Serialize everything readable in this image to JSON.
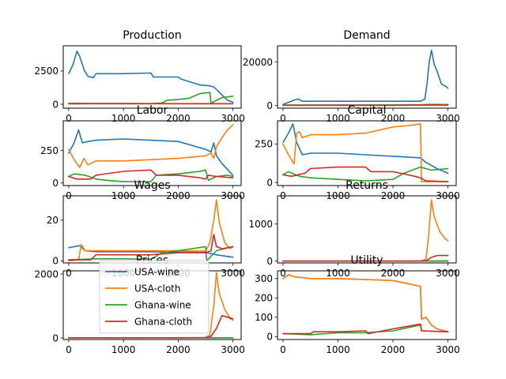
{
  "chart_data": [
    {
      "type": "line",
      "title": "Production",
      "xlim": [
        -100,
        3150
      ],
      "ylim": [
        -300,
        4400
      ],
      "xticks": [
        0,
        1000,
        2000,
        3000
      ],
      "yticks": [
        0,
        2500
      ],
      "series": [
        {
          "name": "USA-wine",
          "color": "#1f77b4",
          "x": [
            0,
            80,
            150,
            200,
            280,
            350,
            450,
            500,
            1000,
            1500,
            1550,
            2000,
            2050,
            2200,
            2400,
            2550,
            2650,
            2800,
            2900,
            3000
          ],
          "y": [
            2300,
            3000,
            4000,
            3600,
            2600,
            2100,
            2000,
            2300,
            2300,
            2350,
            2050,
            2050,
            1900,
            1700,
            1450,
            1400,
            1300,
            700,
            300,
            150
          ]
        },
        {
          "name": "USA-cloth",
          "color": "#ff7f0e",
          "x": [
            0,
            500,
            1000,
            2000,
            2500,
            3000
          ],
          "y": [
            40,
            40,
            30,
            30,
            30,
            30
          ]
        },
        {
          "name": "Ghana-wine",
          "color": "#2ca02c",
          "x": [
            0,
            200,
            500,
            1000,
            1500,
            1700,
            1800,
            2000,
            2200,
            2400,
            2500,
            2580,
            2600,
            2700,
            2800,
            3000
          ],
          "y": [
            20,
            30,
            40,
            40,
            40,
            80,
            300,
            350,
            450,
            800,
            850,
            880,
            50,
            300,
            500,
            600
          ]
        },
        {
          "name": "Ghana-cloth",
          "color": "#d62728",
          "x": [
            0,
            500,
            1000,
            2000,
            2500,
            3000
          ],
          "y": [
            60,
            50,
            50,
            40,
            40,
            40
          ]
        }
      ]
    },
    {
      "type": "line",
      "title": "Demand",
      "xlim": [
        -100,
        3150
      ],
      "ylim": [
        -1200,
        27500
      ],
      "xticks": [
        0,
        1000,
        2000,
        3000
      ],
      "yticks": [
        0,
        20000
      ],
      "series": [
        {
          "name": "USA-wine",
          "color": "#1f77b4",
          "x": [
            0,
            100,
            200,
            280,
            350,
            500,
            1000,
            1500,
            2000,
            2500,
            2580,
            2620,
            2660,
            2700,
            2750,
            2800,
            2880,
            2950,
            3000
          ],
          "y": [
            500,
            1500,
            2500,
            3000,
            2000,
            2000,
            2000,
            2000,
            2000,
            2000,
            3000,
            10000,
            20000,
            25500,
            19000,
            16000,
            10000,
            9000,
            8000
          ]
        },
        {
          "name": "USA-cloth",
          "color": "#ff7f0e",
          "x": [
            0,
            1000,
            2000,
            2500,
            2700,
            3000
          ],
          "y": [
            200,
            200,
            300,
            400,
            600,
            500
          ]
        },
        {
          "name": "Ghana-wine",
          "color": "#2ca02c",
          "x": [
            0,
            1000,
            2000,
            2500,
            2700,
            3000
          ],
          "y": [
            200,
            200,
            300,
            300,
            400,
            400
          ]
        },
        {
          "name": "Ghana-cloth",
          "color": "#d62728",
          "x": [
            0,
            1000,
            2000,
            2500,
            3000
          ],
          "y": [
            100,
            100,
            100,
            200,
            200
          ]
        }
      ]
    },
    {
      "type": "line",
      "title": "Labor",
      "xlim": [
        -100,
        3150
      ],
      "ylim": [
        -20,
        480
      ],
      "xticks": [
        0,
        1000,
        2000,
        3000
      ],
      "yticks": [
        0,
        250
      ],
      "series": [
        {
          "name": "USA-wine",
          "color": "#1f77b4",
          "x": [
            0,
            100,
            180,
            250,
            350,
            500,
            1000,
            1500,
            2000,
            2500,
            2600,
            2650,
            2700,
            2800,
            3000
          ],
          "y": [
            230,
            310,
            410,
            310,
            320,
            330,
            340,
            330,
            320,
            260,
            240,
            310,
            210,
            150,
            60
          ]
        },
        {
          "name": "USA-cloth",
          "color": "#ff7f0e",
          "x": [
            0,
            100,
            200,
            280,
            350,
            500,
            1000,
            1500,
            2000,
            2500,
            2600,
            2650,
            2700,
            2800,
            2900,
            3000
          ],
          "y": [
            260,
            180,
            120,
            190,
            140,
            170,
            170,
            180,
            190,
            210,
            230,
            190,
            280,
            350,
            410,
            450
          ]
        },
        {
          "name": "Ghana-wine",
          "color": "#2ca02c",
          "x": [
            0,
            100,
            300,
            500,
            700,
            1000,
            1500,
            1600,
            2000,
            2200,
            2400,
            2500,
            2550,
            2700,
            2900,
            3000
          ],
          "y": [
            50,
            70,
            60,
            30,
            20,
            10,
            10,
            60,
            70,
            80,
            90,
            100,
            20,
            50,
            60,
            50
          ]
        },
        {
          "name": "Ghana-cloth",
          "color": "#d62728",
          "x": [
            0,
            150,
            400,
            500,
            1000,
            1500,
            1600,
            2000,
            2400,
            2500,
            2550,
            2700,
            3000
          ],
          "y": [
            50,
            30,
            30,
            60,
            90,
            100,
            60,
            60,
            40,
            30,
            60,
            50,
            40
          ]
        }
      ]
    },
    {
      "type": "line",
      "title": "Capital",
      "xlim": [
        -100,
        3150
      ],
      "ylim": [
        -20,
        400
      ],
      "xticks": [
        0,
        1000,
        2000,
        3000
      ],
      "yticks": [
        0,
        250
      ],
      "series": [
        {
          "name": "USA-wine",
          "color": "#1f77b4",
          "x": [
            0,
            100,
            180,
            250,
            350,
            500,
            1000,
            1500,
            2000,
            2500,
            2600,
            2800,
            3000
          ],
          "y": [
            260,
            320,
            380,
            260,
            180,
            190,
            190,
            180,
            170,
            160,
            130,
            90,
            60
          ]
        },
        {
          "name": "USA-cloth",
          "color": "#ff7f0e",
          "x": [
            0,
            100,
            200,
            250,
            300,
            350,
            500,
            1000,
            1500,
            2000,
            2300,
            2500,
            2520,
            3000
          ],
          "y": [
            250,
            180,
            120,
            320,
            330,
            290,
            310,
            310,
            320,
            360,
            370,
            380,
            5,
            5
          ]
        },
        {
          "name": "Ghana-wine",
          "color": "#2ca02c",
          "x": [
            0,
            100,
            300,
            500,
            1000,
            1500,
            2000,
            2200,
            2500,
            2700,
            3000
          ],
          "y": [
            50,
            70,
            40,
            30,
            20,
            10,
            20,
            60,
            100,
            80,
            90
          ]
        },
        {
          "name": "Ghana-cloth",
          "color": "#d62728",
          "x": [
            0,
            150,
            400,
            500,
            1000,
            1500,
            1600,
            2000,
            2400,
            2500,
            2600,
            3000
          ],
          "y": [
            50,
            40,
            60,
            90,
            100,
            100,
            70,
            70,
            40,
            30,
            10,
            5
          ]
        }
      ]
    },
    {
      "type": "line",
      "title": "Wages",
      "xlim": [
        -100,
        3150
      ],
      "ylim": [
        -1,
        32
      ],
      "xticks": [
        0,
        1000,
        2000,
        3000
      ],
      "yticks": [
        0,
        20
      ],
      "series": [
        {
          "name": "USA-wine",
          "color": "#1f77b4",
          "x": [
            0,
            200,
            300,
            500,
            1000,
            1500,
            2000,
            2500,
            2700,
            3000
          ],
          "y": [
            6.5,
            7.5,
            5,
            4.5,
            4.5,
            4.5,
            4.3,
            4.2,
            3,
            1.8
          ]
        },
        {
          "name": "USA-cloth",
          "color": "#ff7f0e",
          "x": [
            0,
            180,
            230,
            300,
            500,
            1000,
            1500,
            2000,
            2500,
            2580,
            2650,
            2700,
            2750,
            2850,
            2950,
            3000
          ],
          "y": [
            0,
            0.5,
            8,
            5,
            5,
            5,
            5,
            5,
            4.8,
            9,
            20,
            30,
            19,
            9,
            6,
            7
          ]
        },
        {
          "name": "Ghana-wine",
          "color": "#2ca02c",
          "x": [
            0,
            500,
            1000,
            1500,
            1700,
            2000,
            2500,
            2520,
            2700,
            3000
          ],
          "y": [
            0.5,
            1,
            1,
            0.8,
            4,
            5,
            7,
            0,
            5,
            7
          ]
        },
        {
          "name": "Ghana-cloth",
          "color": "#d62728",
          "x": [
            0,
            400,
            500,
            1000,
            1500,
            2000,
            2500,
            2600,
            2650,
            2700,
            2800,
            3000
          ],
          "y": [
            0.5,
            0.5,
            3,
            3,
            3,
            4,
            4,
            5,
            13,
            7,
            6,
            7
          ]
        }
      ]
    },
    {
      "type": "line",
      "title": "Returns",
      "xlim": [
        -100,
        3150
      ],
      "ylim": [
        -50,
        1760
      ],
      "xticks": [
        0,
        1000,
        2000,
        3000
      ],
      "yticks": [
        0,
        1000
      ],
      "series": [
        {
          "name": "USA-wine",
          "color": "#1f77b4",
          "x": [
            0,
            1000,
            2000,
            3000
          ],
          "y": [
            0,
            0,
            0,
            0
          ]
        },
        {
          "name": "USA-cloth",
          "color": "#ff7f0e",
          "x": [
            0,
            1000,
            2000,
            2500,
            2600,
            2650,
            2700,
            2750,
            2850,
            2950,
            3000
          ],
          "y": [
            0,
            0,
            0,
            0,
            50,
            700,
            1650,
            1200,
            800,
            600,
            550
          ]
        },
        {
          "name": "Ghana-wine",
          "color": "#2ca02c",
          "x": [
            0,
            1000,
            2000,
            3000
          ],
          "y": [
            0,
            0,
            0,
            5
          ]
        },
        {
          "name": "Ghana-cloth",
          "color": "#d62728",
          "x": [
            0,
            1000,
            2000,
            2500,
            2600,
            2700,
            2800,
            3000
          ],
          "y": [
            0,
            0,
            0,
            0,
            10,
            100,
            150,
            150
          ]
        }
      ]
    },
    {
      "type": "line",
      "title": "Prices",
      "xlim": [
        -100,
        3150
      ],
      "ylim": [
        -50,
        2100
      ],
      "xticks": [
        0,
        1000,
        2000,
        3000
      ],
      "yticks": [
        0,
        2000
      ],
      "series": [
        {
          "name": "USA-wine",
          "color": "#1f77b4",
          "x": [
            0,
            1000,
            2000,
            3000
          ],
          "y": [
            5,
            5,
            5,
            5
          ]
        },
        {
          "name": "USA-cloth",
          "color": "#ff7f0e",
          "x": [
            0,
            1000,
            2000,
            2500,
            2580,
            2650,
            2700,
            2750,
            2850,
            2950,
            3000
          ],
          "y": [
            5,
            5,
            5,
            10,
            100,
            1000,
            2050,
            1400,
            900,
            600,
            550
          ]
        },
        {
          "name": "Ghana-wine",
          "color": "#2ca02c",
          "x": [
            0,
            1000,
            2000,
            3000
          ],
          "y": [
            5,
            5,
            5,
            5
          ]
        },
        {
          "name": "Ghana-cloth",
          "color": "#d62728",
          "x": [
            0,
            1000,
            2000,
            2500,
            2600,
            2700,
            2800,
            3000
          ],
          "y": [
            5,
            5,
            5,
            10,
            50,
            300,
            700,
            600
          ]
        }
      ]
    },
    {
      "type": "line",
      "title": "Utility",
      "xlim": [
        -100,
        3150
      ],
      "ylim": [
        -15,
        340
      ],
      "xticks": [
        0,
        1000,
        2000,
        3000
      ],
      "yticks": [
        0,
        100,
        200,
        300
      ],
      "series": [
        {
          "name": "USA-wine",
          "color": "#1f77b4",
          "x": [
            0,
            100,
            200,
            500,
            1000,
            1500,
            2000,
            2500,
            2520,
            2600,
            2700,
            2800,
            3000
          ],
          "y": [
            300,
            320,
            310,
            300,
            300,
            295,
            290,
            260,
            90,
            100,
            60,
            40,
            25
          ]
        },
        {
          "name": "USA-cloth",
          "color": "#ff7f0e",
          "x": [
            0,
            100,
            200,
            500,
            1000,
            1500,
            2000,
            2500,
            2520,
            2600,
            2700,
            2800,
            3000
          ],
          "y": [
            300,
            320,
            310,
            300,
            300,
            295,
            290,
            260,
            90,
            100,
            60,
            40,
            25
          ]
        },
        {
          "name": "Ghana-wine",
          "color": "#2ca02c",
          "x": [
            0,
            500,
            1000,
            1500,
            2000,
            2500,
            2520,
            3000
          ],
          "y": [
            15,
            10,
            20,
            20,
            30,
            60,
            30,
            25
          ]
        },
        {
          "name": "Ghana-cloth",
          "color": "#d62728",
          "x": [
            0,
            500,
            550,
            1000,
            1500,
            1550,
            2000,
            2500,
            2520,
            3000
          ],
          "y": [
            15,
            15,
            25,
            25,
            30,
            15,
            40,
            65,
            30,
            25
          ]
        }
      ]
    }
  ],
  "legend": {
    "placement": "left panel of row 4",
    "items": [
      {
        "label": "USA-wine",
        "color": "#1f77b4"
      },
      {
        "label": "USA-cloth",
        "color": "#ff7f0e"
      },
      {
        "label": "Ghana-wine",
        "color": "#2ca02c"
      },
      {
        "label": "Ghana-cloth",
        "color": "#d62728"
      }
    ]
  }
}
